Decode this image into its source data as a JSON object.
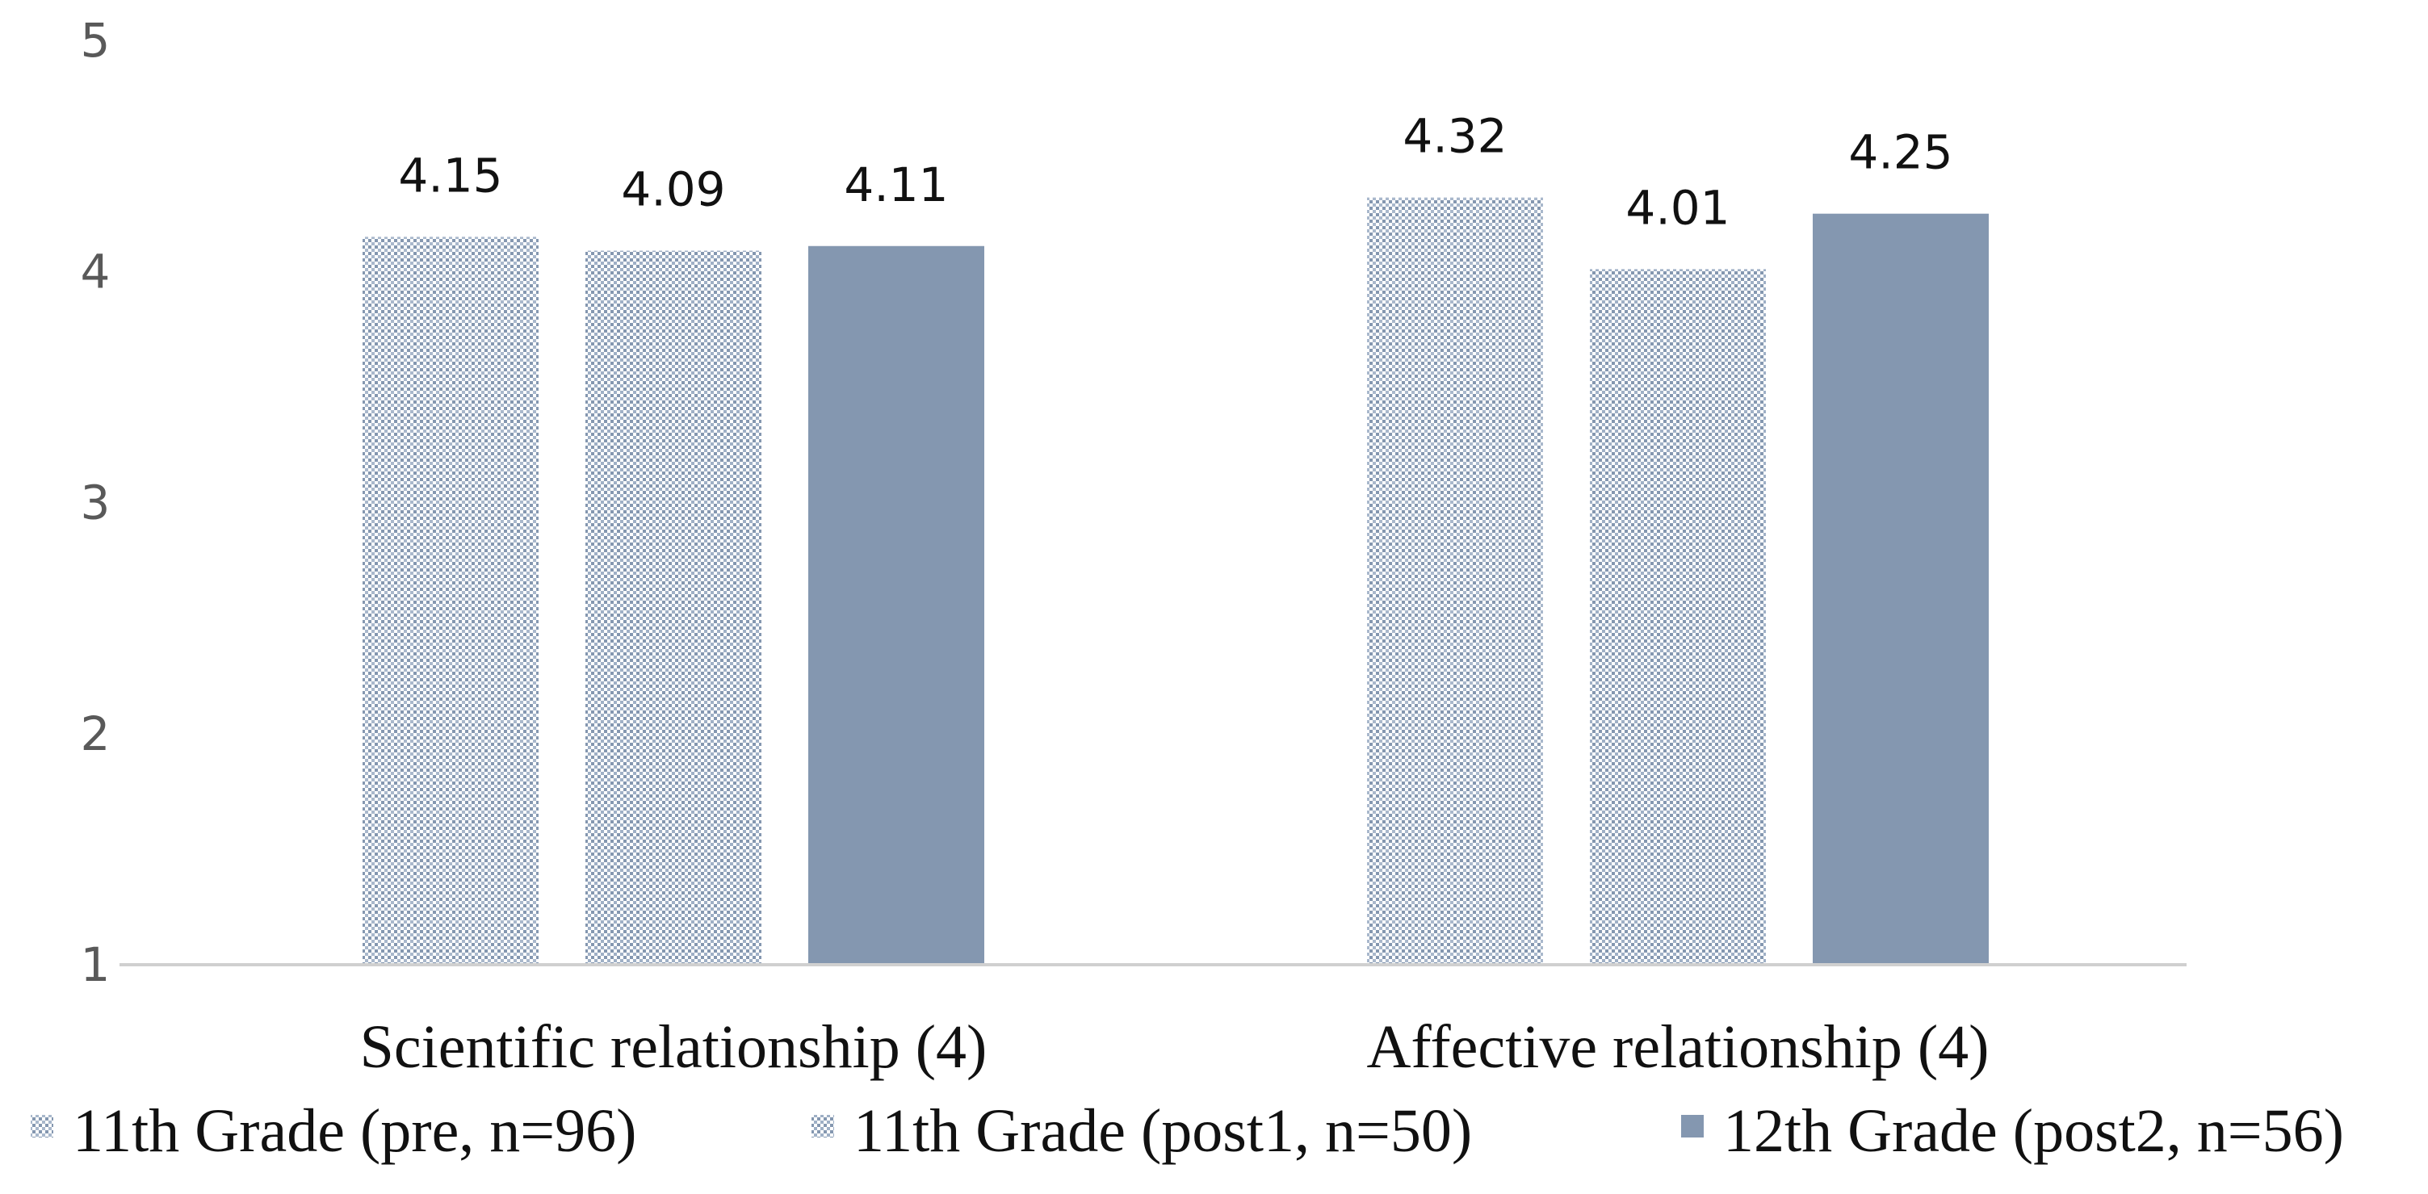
{
  "chart_data": {
    "type": "bar",
    "categories": [
      "Scientific relationship (4)",
      "Affective relationship (4)"
    ],
    "series": [
      {
        "name": "11th Grade (pre, n=96)",
        "values": [
          4.15,
          4.32
        ],
        "labels": [
          "4.15",
          "4.32"
        ],
        "pattern": "dotted",
        "color": "#8497b0"
      },
      {
        "name": "11th Grade (post1, n=50)",
        "values": [
          4.09,
          4.01
        ],
        "labels": [
          "4.09",
          "4.01"
        ],
        "pattern": "checker",
        "color": "#8497b0"
      },
      {
        "name": "12th Grade (post2, n=56)",
        "values": [
          4.11,
          4.25
        ],
        "labels": [
          "4.11",
          "4.25"
        ],
        "pattern": "solid",
        "color": "#8497b0"
      }
    ],
    "yticks": [
      "1",
      "2",
      "3",
      "4",
      "5"
    ],
    "ylim": [
      1,
      5
    ],
    "title": "",
    "xlabel": "",
    "ylabel": "",
    "grid": false,
    "legend_position": "bottom"
  }
}
